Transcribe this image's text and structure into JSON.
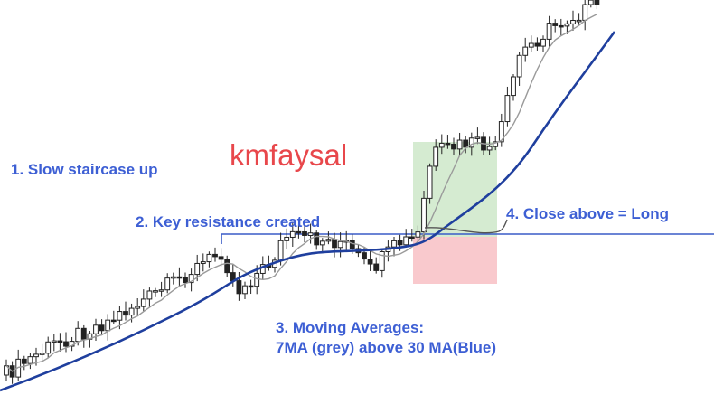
{
  "watermark": "kmfaysal",
  "annotations": [
    "1. Slow staircase up",
    "2. Key resistance created",
    "4. Close above = Long",
    "3. Moving Averages:",
    "7MA (grey) above 30 MA(Blue)"
  ]
}
